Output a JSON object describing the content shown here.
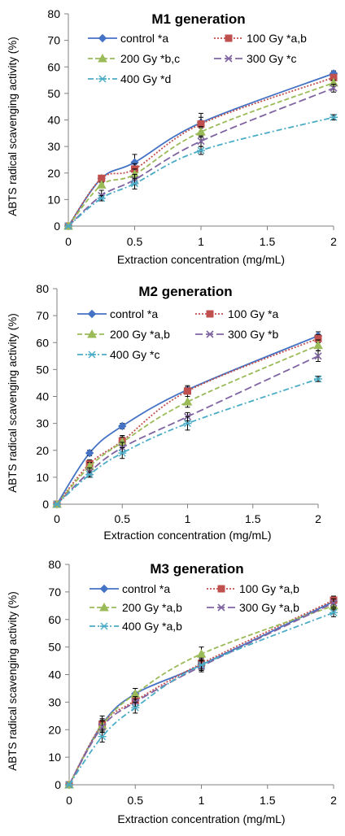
{
  "chart_data": [
    {
      "type": "line",
      "title": "M1 generation",
      "xlabel": "Extraction concentration (mg/mL)",
      "ylabel": "ABTS radical scavenging activity (%)",
      "x": [
        0,
        0.25,
        0.5,
        1,
        2
      ],
      "xlim": [
        0,
        2
      ],
      "ylim": [
        0,
        80
      ],
      "xticks": [
        "0",
        "0.5",
        "1",
        "1.5",
        "2"
      ],
      "yticks": [
        "0",
        "10",
        "20",
        "30",
        "40",
        "50",
        "60",
        "70",
        "80"
      ],
      "grid": false,
      "legend": "top-left",
      "series": [
        {
          "name": "control *a",
          "values": [
            0,
            18,
            24,
            39,
            57.5
          ],
          "errors": [
            0,
            1,
            3,
            2,
            1
          ],
          "color": "#4472c4",
          "dash": "solid",
          "marker": "diamond"
        },
        {
          "name": "100 Gy *a,b",
          "values": [
            0,
            18,
            21.5,
            38.5,
            56
          ],
          "errors": [
            0,
            1,
            2,
            4,
            1
          ],
          "color": "#c0504d",
          "dash": "dotted",
          "marker": "square"
        },
        {
          "name": "200 Gy *b,c",
          "values": [
            0,
            15.5,
            19.5,
            35.5,
            54
          ],
          "errors": [
            0,
            1,
            2,
            2,
            1
          ],
          "color": "#9bbb59",
          "dash": "dashed",
          "marker": "triangle"
        },
        {
          "name": "300 Gy *c",
          "values": [
            0,
            11.5,
            17.5,
            32,
            52
          ],
          "errors": [
            0,
            2,
            2,
            2,
            1.5
          ],
          "color": "#8064a2",
          "dash": "longdash",
          "marker": "x"
        },
        {
          "name": "400 Gy *d",
          "values": [
            0,
            10.5,
            16,
            28.5,
            41
          ],
          "errors": [
            0,
            1,
            2,
            1.5,
            1
          ],
          "color": "#4bacc6",
          "dash": "dashdot",
          "marker": "star"
        }
      ]
    },
    {
      "type": "line",
      "title": "M2 generation",
      "xlabel": "Extraction concentration (mg/mL)",
      "ylabel": "ABTS radical scavenging activity (%)",
      "x": [
        0,
        0.25,
        0.5,
        1,
        2
      ],
      "xlim": [
        0,
        2
      ],
      "ylim": [
        0,
        80
      ],
      "xticks": [
        "0",
        "0.5",
        "1",
        "1.5",
        "2"
      ],
      "yticks": [
        "0",
        "10",
        "20",
        "30",
        "40",
        "50",
        "60",
        "70",
        "80"
      ],
      "grid": false,
      "legend": "top-left",
      "series": [
        {
          "name": "control *a",
          "values": [
            0,
            19,
            29,
            42.5,
            62.5
          ],
          "errors": [
            0,
            1,
            1,
            1,
            1.5
          ],
          "color": "#4472c4",
          "dash": "solid",
          "marker": "diamond"
        },
        {
          "name": "100 Gy *a",
          "values": [
            0,
            15,
            23.5,
            42,
            61.5
          ],
          "errors": [
            0,
            1.5,
            2,
            2,
            1.5
          ],
          "color": "#c0504d",
          "dash": "dotted",
          "marker": "square"
        },
        {
          "name": "200 Gy *a,b",
          "values": [
            0,
            14,
            23,
            38,
            59
          ],
          "errors": [
            0,
            1.5,
            2,
            2,
            2
          ],
          "color": "#9bbb59",
          "dash": "dashed",
          "marker": "triangle"
        },
        {
          "name": "300 Gy *b",
          "values": [
            0,
            12,
            21,
            32.5,
            55
          ],
          "errors": [
            0,
            1.5,
            2,
            1.5,
            2
          ],
          "color": "#8064a2",
          "dash": "longdash",
          "marker": "x"
        },
        {
          "name": "400 Gy *c",
          "values": [
            0,
            11,
            19,
            30,
            46.5
          ],
          "errors": [
            0,
            1,
            2,
            2.5,
            1
          ],
          "color": "#4bacc6",
          "dash": "dashdot",
          "marker": "star"
        }
      ]
    },
    {
      "type": "line",
      "title": "M3 generation",
      "xlabel": "Extraction concentration (mg/mL)",
      "ylabel": "ABTS radical scavenging activity (%)",
      "x": [
        0,
        0.25,
        0.5,
        1,
        2
      ],
      "xlim": [
        0,
        2
      ],
      "ylim": [
        0,
        80
      ],
      "xticks": [
        "0",
        "0.5",
        "1",
        "1.5",
        "2"
      ],
      "yticks": [
        "0",
        "10",
        "20",
        "30",
        "40",
        "50",
        "60",
        "70",
        "80"
      ],
      "grid": false,
      "legend": "top-left",
      "series": [
        {
          "name": "control *a",
          "values": [
            0,
            22,
            33,
            43.5,
            66.5
          ],
          "errors": [
            0,
            3,
            2,
            2,
            1.5
          ],
          "color": "#4472c4",
          "dash": "solid",
          "marker": "diamond"
        },
        {
          "name": "100 Gy *a,b",
          "values": [
            0,
            22,
            30.5,
            44,
            67
          ],
          "errors": [
            0,
            2,
            2,
            2,
            1.5
          ],
          "color": "#c0504d",
          "dash": "dotted",
          "marker": "square"
        },
        {
          "name": "200 Gy *a,b",
          "values": [
            0,
            21.5,
            33,
            47.5,
            65
          ],
          "errors": [
            0,
            2,
            2,
            2.5,
            1.5
          ],
          "color": "#9bbb59",
          "dash": "dashed",
          "marker": "triangle"
        },
        {
          "name": "300 Gy *a,b",
          "values": [
            0,
            21,
            30,
            43,
            66
          ],
          "errors": [
            0,
            2,
            2,
            2,
            1.5
          ],
          "color": "#8064a2",
          "dash": "longdash",
          "marker": "x"
        },
        {
          "name": "400 Gy *a,b",
          "values": [
            0,
            17.5,
            28,
            43.5,
            62.5
          ],
          "errors": [
            0,
            2,
            2,
            2,
            1.5
          ],
          "color": "#4bacc6",
          "dash": "dashdot",
          "marker": "star"
        }
      ]
    }
  ]
}
